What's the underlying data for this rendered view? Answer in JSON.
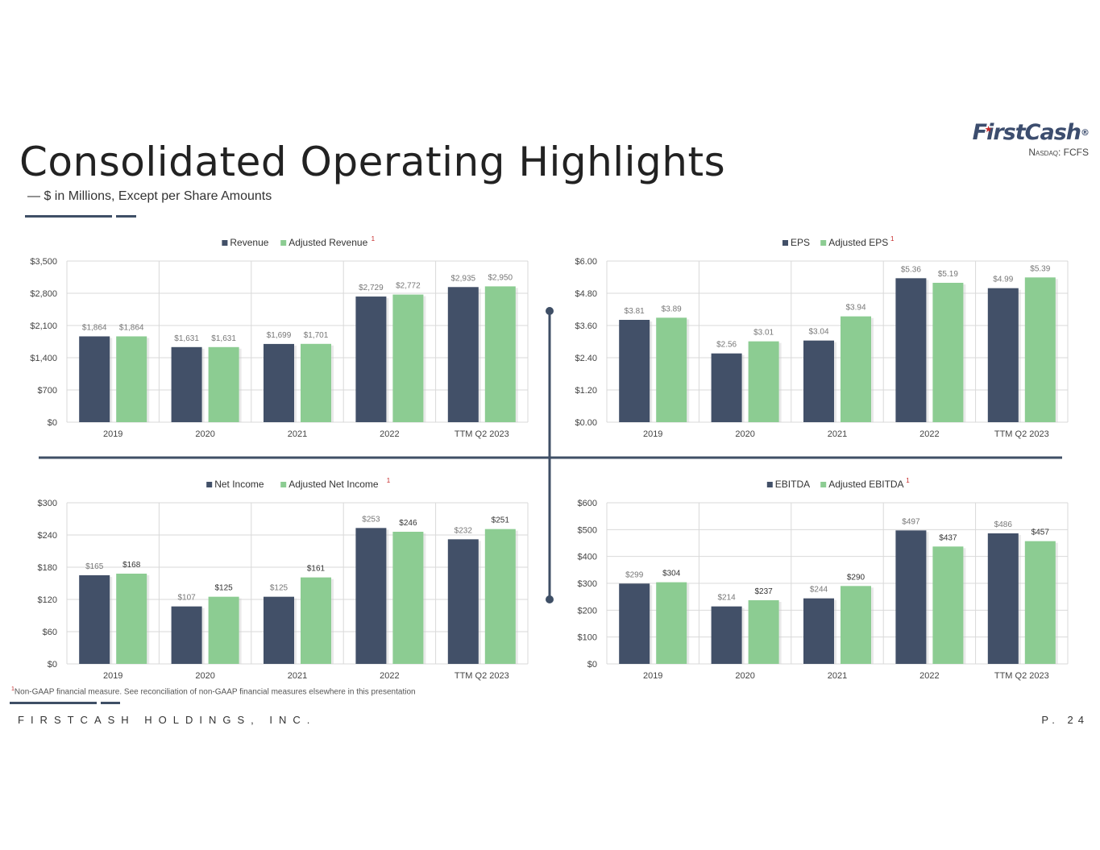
{
  "header": {
    "title": "Consolidated Operating Highlights",
    "subtitle": "— $ in Millions, Except per Share Amounts"
  },
  "logo": {
    "wordmark": "FirstCash",
    "registered": "®",
    "ticker": "Nasdaq: FCFS"
  },
  "footer": {
    "footnote_mark": "1",
    "footnote_text": "Non-GAAP financial measure. See reconciliation of non-GAAP financial measures elsewhere in this presentation",
    "company": "FIRSTCASH HOLDINGS, INC.",
    "page": "P. 24"
  },
  "colors": {
    "series_dark": "#425068",
    "series_green": "#8ccc92",
    "grid": "#d9d9d9",
    "divider": "#3f4f66",
    "footnote_mark": "#c62828"
  },
  "chart_data": [
    {
      "id": "revenue",
      "type": "bar",
      "categories": [
        "2019",
        "2020",
        "2021",
        "2022",
        "TTM Q2 2023"
      ],
      "series": [
        {
          "name": "Revenue",
          "values": [
            1864,
            1631,
            1699,
            2729,
            2935
          ],
          "labels": [
            "$1,864",
            "$1,631",
            "$1,699",
            "$2,729",
            "$2,935"
          ]
        },
        {
          "name": "Adjusted Revenue",
          "values": [
            1864,
            1631,
            1701,
            2772,
            2950
          ],
          "labels": [
            "$1,864",
            "$1,631",
            "$1,701",
            "$2,772",
            "$2,950"
          ],
          "footnote": "1"
        }
      ],
      "ylim": [
        0,
        3500
      ],
      "yticks": [
        "$0",
        "$700",
        "$1,400",
        "$2,100",
        "$2,800",
        "$3,500"
      ],
      "legend": "top-center"
    },
    {
      "id": "eps",
      "type": "bar",
      "categories": [
        "2019",
        "2020",
        "2021",
        "2022",
        "TTM Q2 2023"
      ],
      "series": [
        {
          "name": "EPS",
          "values": [
            3.81,
            2.56,
            3.04,
            5.36,
            4.99
          ],
          "labels": [
            "$3.81",
            "$2.56",
            "$3.04",
            "$5.36",
            "$4.99"
          ]
        },
        {
          "name": "Adjusted EPS",
          "values": [
            3.89,
            3.01,
            3.94,
            5.19,
            5.39
          ],
          "labels": [
            "$3.89",
            "$3.01",
            "$3.94",
            "$5.19",
            "$5.39"
          ],
          "footnote": "1"
        }
      ],
      "ylim": [
        0,
        6
      ],
      "yticks": [
        "$0.00",
        "$1.20",
        "$2.40",
        "$3.60",
        "$4.80",
        "$6.00"
      ],
      "legend": "top-center"
    },
    {
      "id": "net-income",
      "type": "bar",
      "categories": [
        "2019",
        "2020",
        "2021",
        "2022",
        "TTM Q2 2023"
      ],
      "series": [
        {
          "name": "Net Income",
          "values": [
            165,
            107,
            125,
            253,
            232
          ],
          "labels": [
            "$165",
            "$107",
            "$125",
            "$253",
            "$232"
          ]
        },
        {
          "name": "Adjusted Net Income",
          "values": [
            168,
            125,
            161,
            246,
            251
          ],
          "labels": [
            "$168",
            "$125",
            "$161",
            "$246",
            "$251"
          ],
          "footnote": "1"
        }
      ],
      "ylim": [
        0,
        300
      ],
      "yticks": [
        "$0",
        "$60",
        "$120",
        "$180",
        "$240",
        "$300"
      ],
      "legend": "top-center"
    },
    {
      "id": "ebitda",
      "type": "bar",
      "categories": [
        "2019",
        "2020",
        "2021",
        "2022",
        "TTM Q2 2023"
      ],
      "series": [
        {
          "name": "EBITDA",
          "values": [
            299,
            214,
            244,
            497,
            486
          ],
          "labels": [
            "$299",
            "$214",
            "$244",
            "$497",
            "$486"
          ]
        },
        {
          "name": "Adjusted EBITDA",
          "values": [
            304,
            237,
            290,
            437,
            457
          ],
          "labels": [
            "$304",
            "$237",
            "$290",
            "$437",
            "$457"
          ],
          "footnote": "1"
        }
      ],
      "ylim": [
        0,
        600
      ],
      "yticks": [
        "$0",
        "$100",
        "$200",
        "$300",
        "$400",
        "$500",
        "$600"
      ],
      "legend": "top-center"
    }
  ]
}
